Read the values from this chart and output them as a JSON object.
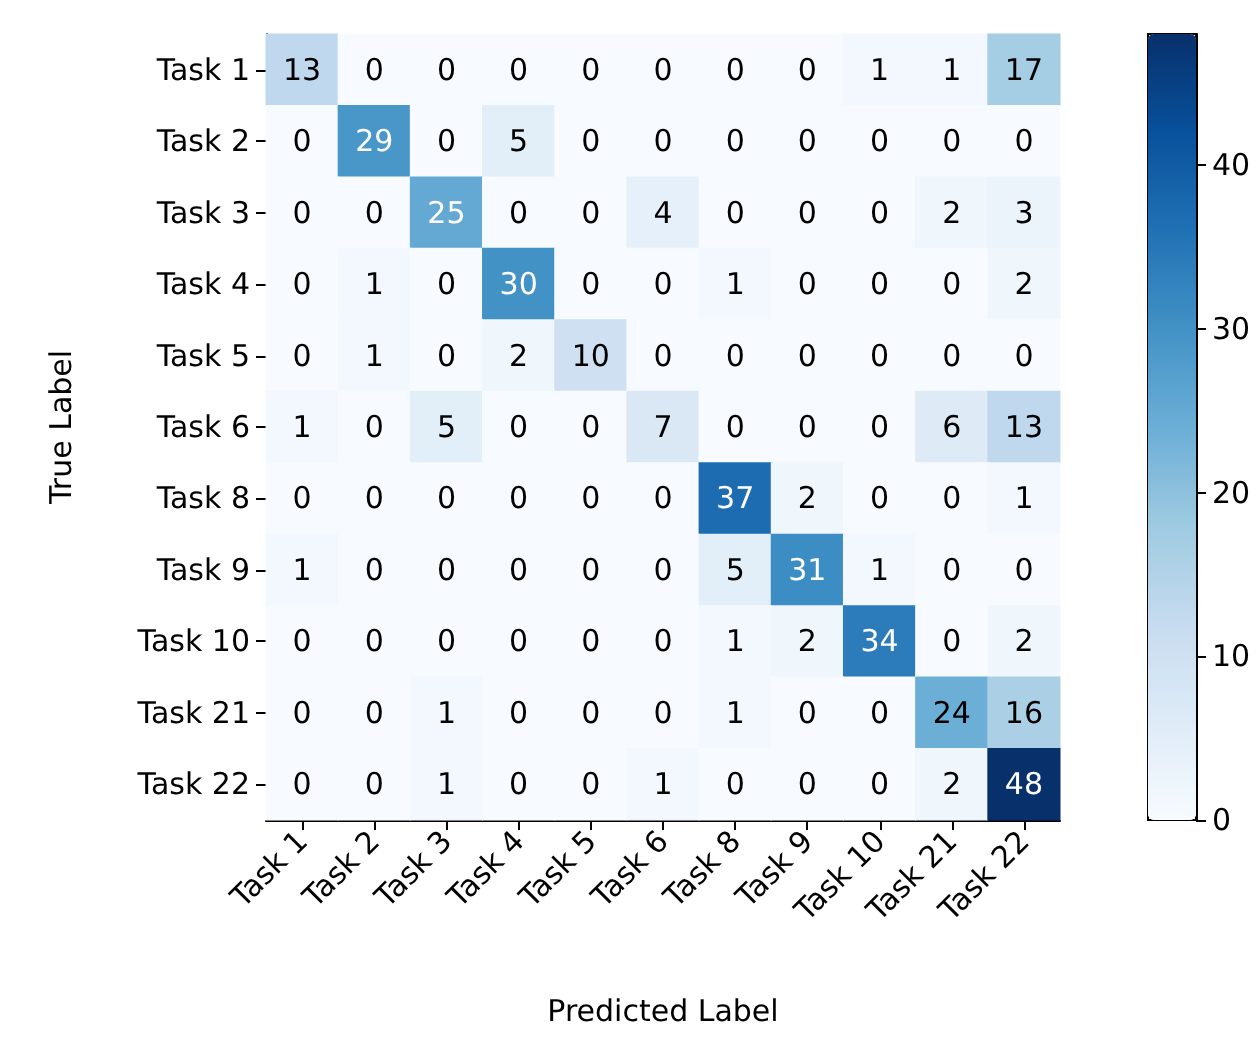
{
  "chart_data": {
    "type": "heatmap",
    "xlabel": "Predicted Label",
    "ylabel": "True Label",
    "categories": [
      "Task 1",
      "Task 2",
      "Task 3",
      "Task 4",
      "Task 5",
      "Task 6",
      "Task 8",
      "Task 9",
      "Task 10",
      "Task 21",
      "Task 22"
    ],
    "y_categories": [
      "Task 1",
      "Task 2",
      "Task 3",
      "Task 4",
      "Task 5",
      "Task 6",
      "Task 8",
      "Task 9",
      "Task 10",
      "Task 21",
      "Task 22"
    ],
    "cells": [
      [
        13,
        0,
        0,
        0,
        0,
        0,
        0,
        0,
        1,
        1,
        17
      ],
      [
        0,
        29,
        0,
        5,
        0,
        0,
        0,
        0,
        0,
        0,
        0
      ],
      [
        0,
        0,
        25,
        0,
        0,
        4,
        0,
        0,
        0,
        2,
        3
      ],
      [
        0,
        1,
        0,
        30,
        0,
        0,
        1,
        0,
        0,
        0,
        2
      ],
      [
        0,
        1,
        0,
        2,
        10,
        0,
        0,
        0,
        0,
        0,
        0
      ],
      [
        1,
        0,
        5,
        0,
        0,
        7,
        0,
        0,
        0,
        6,
        13
      ],
      [
        0,
        0,
        0,
        0,
        0,
        0,
        37,
        2,
        0,
        0,
        1
      ],
      [
        1,
        0,
        0,
        0,
        0,
        0,
        5,
        31,
        1,
        0,
        0
      ],
      [
        0,
        0,
        0,
        0,
        0,
        0,
        1,
        2,
        34,
        0,
        2
      ],
      [
        0,
        0,
        1,
        0,
        0,
        0,
        1,
        0,
        0,
        24,
        16
      ],
      [
        0,
        0,
        1,
        0,
        0,
        1,
        0,
        0,
        0,
        2,
        48
      ]
    ],
    "clim": [
      0,
      48
    ],
    "cticks": [
      0,
      10,
      20,
      30,
      40
    ],
    "data_labels": true
  }
}
